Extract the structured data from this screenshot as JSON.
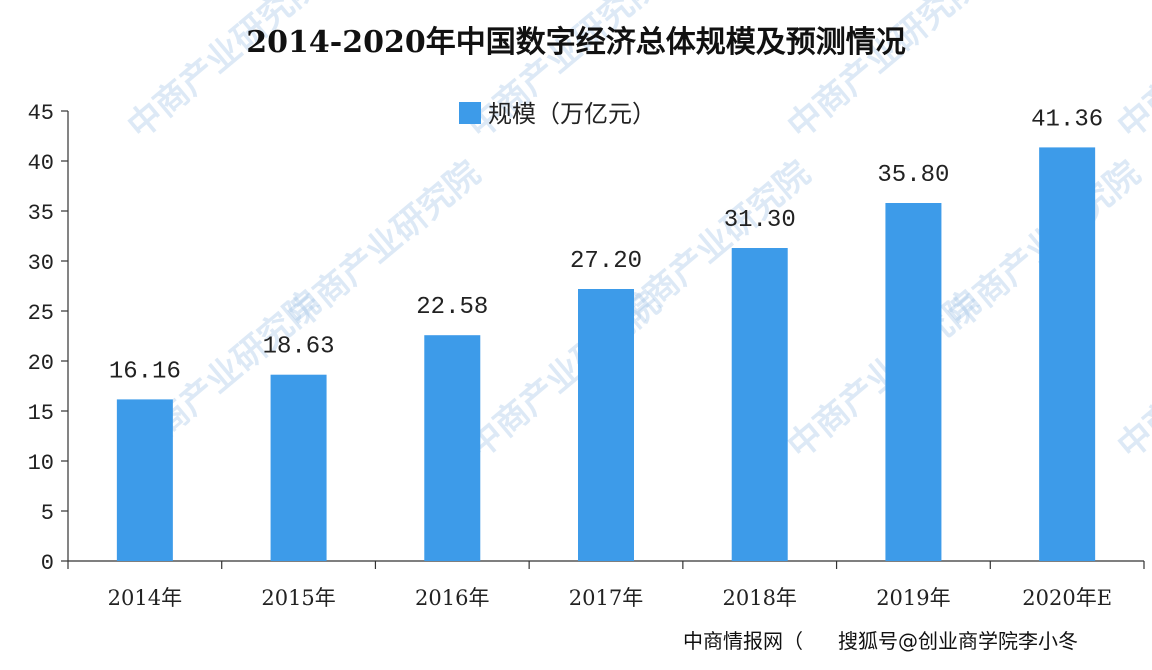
{
  "chart_data": {
    "type": "bar",
    "title": "2014-2020年中国数字经济总体规模及预测情况",
    "categories": [
      "2014年",
      "2015年",
      "2016年",
      "2017年",
      "2018年",
      "2019年",
      "2020年E"
    ],
    "series": [
      {
        "name": "规模（万亿元）",
        "values": [
          16.16,
          18.63,
          22.58,
          27.2,
          31.3,
          35.8,
          41.36
        ],
        "color": "#3d9be9"
      }
    ],
    "data_labels": [
      "16.16",
      "18.63",
      "22.58",
      "27.20",
      "31.30",
      "35.80",
      "41.36"
    ],
    "ylim": [
      0,
      45
    ],
    "yticks": [
      0,
      5,
      10,
      15,
      20,
      25,
      30,
      35,
      40,
      45
    ],
    "legend_position": "top-center",
    "grid": false
  },
  "footer": {
    "source": "中商情报网（",
    "credit": "搜狐号@创业商学院李小冬"
  },
  "watermark": {
    "text": "中商产业研究院",
    "color": "#9fc3e6"
  }
}
